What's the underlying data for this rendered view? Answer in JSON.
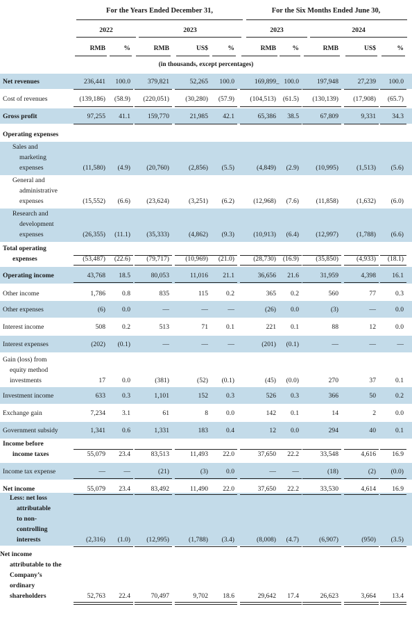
{
  "header": {
    "period_annual": "For the Years Ended December 31,",
    "period_semi": "For the Six Months Ended June 30,",
    "years": [
      "2022",
      "2023",
      "2023",
      "2024"
    ],
    "units": [
      "RMB",
      "%",
      "RMB",
      "US$",
      "%",
      "RMB",
      "%",
      "RMB",
      "US$",
      "%"
    ],
    "note": "(in thousands, except percentages)"
  },
  "rows": [
    {
      "label": "Net revenues",
      "bold": true,
      "values": [
        "236,441",
        "100.0",
        "379,821",
        "52,265",
        "100.0",
        "169,899",
        "100.0",
        "197,948",
        "27,239",
        "100.0"
      ]
    },
    {
      "label": "Cost of revenues",
      "values": [
        "(139,186)",
        "(58.9)",
        "(220,051)",
        "(30,280)",
        "(57.9)",
        "(104,513)",
        "(61.5)",
        "(130,139)",
        "(17,908)",
        "(65.7)"
      ]
    },
    {
      "label": "Gross profit",
      "bold": true,
      "values": [
        "97,255",
        "41.1",
        "159,770",
        "21,985",
        "42.1",
        "65,386",
        "38.5",
        "67,809",
        "9,331",
        "34.3"
      ]
    },
    {
      "label": "Operating expenses",
      "bold": true,
      "values": []
    },
    {
      "label": [
        "Sales and",
        "marketing",
        "expenses"
      ],
      "values": [
        "(11,580)",
        "(4.9)",
        "(20,760)",
        "(2,856)",
        "(5.5)",
        "(4,849)",
        "(2.9)",
        "(10,995)",
        "(1,513)",
        "(5.6)"
      ]
    },
    {
      "label": [
        "General and",
        "administrative",
        "expenses"
      ],
      "values": [
        "(15,552)",
        "(6.6)",
        "(23,624)",
        "(3,251)",
        "(6.2)",
        "(12,968)",
        "(7.6)",
        "(11,858)",
        "(1,632)",
        "(6.0)"
      ]
    },
    {
      "label": [
        "Research and",
        "development",
        "expenses"
      ],
      "values": [
        "(26,355)",
        "(11.1)",
        "(35,333)",
        "(4,862)",
        "(9.3)",
        "(10,913)",
        "(6.4)",
        "(12,997)",
        "(1,788)",
        "(6.6)"
      ]
    },
    {
      "label": [
        "Total operating",
        "expenses"
      ],
      "bold": true,
      "values": [
        "(53,487)",
        "(22.6)",
        "(79,717)",
        "(10,969)",
        "(21.0)",
        "(28,730)",
        "(16.9)",
        "(35,850)",
        "(4,933)",
        "(18.1)"
      ]
    },
    {
      "label": "Operating income",
      "bold": true,
      "values": [
        "43,768",
        "18.5",
        "80,053",
        "11,016",
        "21.1",
        "36,656",
        "21.6",
        "31,959",
        "4,398",
        "16.1"
      ]
    },
    {
      "label": "Other income",
      "values": [
        "1,786",
        "0.8",
        "835",
        "115",
        "0.2",
        "365",
        "0.2",
        "560",
        "77",
        "0.3"
      ]
    },
    {
      "label": "Other expenses",
      "values": [
        "(6)",
        "0.0",
        "—",
        "—",
        "—",
        "(26)",
        "0.0",
        "(3)",
        "—",
        "0.0"
      ]
    },
    {
      "label": "Interest income",
      "values": [
        "508",
        "0.2",
        "513",
        "71",
        "0.1",
        "221",
        "0.1",
        "88",
        "12",
        "0.0"
      ]
    },
    {
      "label": "Interest expenses",
      "values": [
        "(202)",
        "(0.1)",
        "—",
        "—",
        "—",
        "(201)",
        "(0.1)",
        "—",
        "—",
        "—"
      ]
    },
    {
      "label": [
        "Gain (loss) from",
        "equity method",
        "investments"
      ],
      "values": [
        "17",
        "0.0",
        "(381)",
        "(52)",
        "(0.1)",
        "(45)",
        "(0.0)",
        "270",
        "37",
        "0.1"
      ]
    },
    {
      "label": "Investment income",
      "values": [
        "633",
        "0.3",
        "1,101",
        "152",
        "0.3",
        "526",
        "0.3",
        "366",
        "50",
        "0.2"
      ]
    },
    {
      "label": "Exchange gain",
      "values": [
        "7,234",
        "3.1",
        "61",
        "8",
        "0.0",
        "142",
        "0.1",
        "14",
        "2",
        "0.0"
      ]
    },
    {
      "label": "Government subsidy",
      "values": [
        "1,341",
        "0.6",
        "1,331",
        "183",
        "0.4",
        "12",
        "0.0",
        "294",
        "40",
        "0.1"
      ]
    },
    {
      "label": [
        "Income before",
        "income taxes"
      ],
      "bold": true,
      "values": [
        "55,079",
        "23.4",
        "83,513",
        "11,493",
        "22.0",
        "37,650",
        "22.2",
        "33,548",
        "4,616",
        "16.9"
      ]
    },
    {
      "label": "Income tax expense",
      "values": [
        "—",
        "—",
        "(21)",
        "(3)",
        "0.0",
        "—",
        "—",
        "(18)",
        "(2)",
        "(0.0)"
      ]
    },
    {
      "label": "Net income",
      "bold": true,
      "values": [
        "55,079",
        "23.4",
        "83,492",
        "11,490",
        "22.0",
        "37,650",
        "22.2",
        "33,530",
        "4,614",
        "16.9"
      ]
    },
    {
      "label": [
        "Less: net loss",
        "attributable",
        "to non-",
        "controlling",
        "interests"
      ],
      "bold": true,
      "values": [
        "(2,316)",
        "(1.0)",
        "(12,995)",
        "(1,788)",
        "(3.4)",
        "(8,008)",
        "(4.7)",
        "(6,907)",
        "(950)",
        "(3.5)"
      ]
    },
    {
      "label": [
        "Net income",
        "attributable to the",
        "Company’s",
        "ordinary",
        "shareholders"
      ],
      "bold": true,
      "values": [
        "52,763",
        "22.4",
        "70,497",
        "9,702",
        "18.6",
        "29,642",
        "17.4",
        "26,623",
        "3,664",
        "13.4"
      ]
    }
  ],
  "colors": {
    "band": "#c3dbe9"
  }
}
